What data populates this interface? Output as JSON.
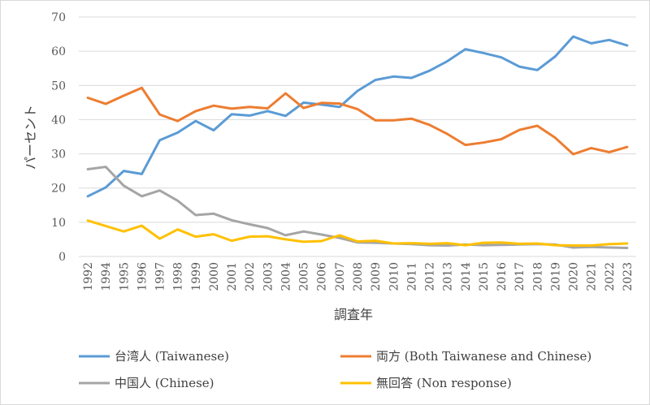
{
  "chart_data": {
    "type": "line",
    "title": "",
    "xlabel": "調査年",
    "ylabel": "パーセント",
    "ylim": [
      0,
      70
    ],
    "yticks": [
      0,
      10,
      20,
      30,
      40,
      50,
      60,
      70
    ],
    "grid": "horizontal",
    "legend_position": "bottom",
    "categories": [
      "1992",
      "1994",
      "1995",
      "1996",
      "1997",
      "1998",
      "1999",
      "2000",
      "2001",
      "2002",
      "2003",
      "2004",
      "2005",
      "2006",
      "2007",
      "2008",
      "2009",
      "2010",
      "2011",
      "2012",
      "2013",
      "2014",
      "2015",
      "2016",
      "2017",
      "2018",
      "2019",
      "2020",
      "2021",
      "2022",
      "2023"
    ],
    "series": [
      {
        "name": "台湾人 (Taiwanese)",
        "color": "#5b9bd5",
        "values": [
          17.6,
          20.2,
          25.0,
          24.1,
          34.0,
          36.2,
          39.6,
          36.9,
          41.6,
          41.2,
          42.5,
          41.1,
          45.0,
          44.4,
          43.7,
          48.4,
          51.6,
          52.6,
          52.2,
          54.3,
          57.1,
          60.6,
          59.5,
          58.2,
          55.5,
          54.5,
          58.5,
          64.3,
          62.3,
          63.3,
          61.7
        ]
      },
      {
        "name": "両方 (Both Taiwanese and Chinese)",
        "color": "#ed7d31",
        "values": [
          46.4,
          44.6,
          47.0,
          49.3,
          41.5,
          39.6,
          42.5,
          44.1,
          43.2,
          43.7,
          43.3,
          47.7,
          43.4,
          44.9,
          44.7,
          43.1,
          39.8,
          39.8,
          40.3,
          38.5,
          35.8,
          32.6,
          33.3,
          34.3,
          37.0,
          38.2,
          34.7,
          29.9,
          31.7,
          30.5,
          32.0
        ]
      },
      {
        "name": "中国人 (Chinese)",
        "color": "#a5a5a5",
        "values": [
          25.5,
          26.2,
          20.7,
          17.6,
          19.3,
          16.3,
          12.1,
          12.5,
          10.6,
          9.4,
          8.3,
          6.2,
          7.3,
          6.4,
          5.4,
          4.1,
          4.0,
          3.8,
          3.6,
          3.3,
          3.2,
          3.5,
          3.3,
          3.4,
          3.5,
          3.6,
          3.5,
          2.6,
          2.8,
          2.6,
          2.5
        ]
      },
      {
        "name": "無回答 (Non response)",
        "color": "#ffc000",
        "values": [
          10.5,
          8.9,
          7.3,
          9.0,
          5.2,
          7.9,
          5.8,
          6.5,
          4.6,
          5.8,
          5.9,
          5.0,
          4.3,
          4.5,
          6.2,
          4.4,
          4.6,
          3.8,
          3.9,
          3.7,
          3.9,
          3.3,
          4.0,
          4.1,
          3.7,
          3.8,
          3.3,
          3.2,
          3.2,
          3.6,
          3.8
        ]
      }
    ]
  }
}
